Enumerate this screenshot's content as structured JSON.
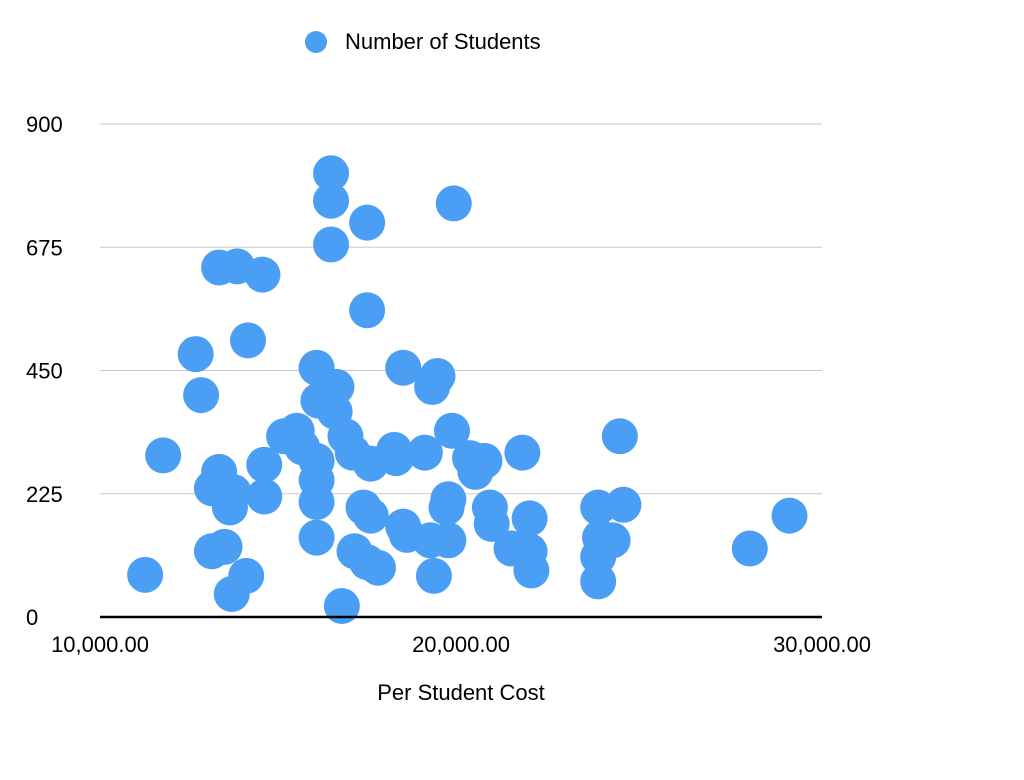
{
  "chart_data": {
    "type": "scatter",
    "title": "",
    "xlabel": "Per Student Cost",
    "ylabel": "",
    "xlim": [
      10000,
      30000
    ],
    "ylim": [
      0,
      900
    ],
    "grid": true,
    "legend_position": "top",
    "series_color": "#4a9ff5",
    "x_ticks": [
      {
        "value": 10000,
        "label": "10,000.00"
      },
      {
        "value": 20000,
        "label": "20,000.00"
      },
      {
        "value": 30000,
        "label": "30,000.00"
      }
    ],
    "y_ticks": [
      {
        "value": 0,
        "label": "0"
      },
      {
        "value": 225,
        "label": "225"
      },
      {
        "value": 450,
        "label": "450"
      },
      {
        "value": 675,
        "label": "675"
      },
      {
        "value": 900,
        "label": "900"
      }
    ],
    "series": [
      {
        "name": "Number of Students",
        "points": [
          [
            11250,
            77
          ],
          [
            11750,
            295
          ],
          [
            12650,
            480
          ],
          [
            12800,
            405
          ],
          [
            13100,
            235
          ],
          [
            13300,
            265
          ],
          [
            13100,
            120
          ],
          [
            13450,
            128
          ],
          [
            13650,
            42
          ],
          [
            13700,
            228
          ],
          [
            13600,
            200
          ],
          [
            13800,
            640
          ],
          [
            13300,
            638
          ],
          [
            14100,
            505
          ],
          [
            14050,
            75
          ],
          [
            14500,
            625
          ],
          [
            14550,
            278
          ],
          [
            14550,
            220
          ],
          [
            15100,
            330
          ],
          [
            15450,
            340
          ],
          [
            15600,
            310
          ],
          [
            16000,
            455
          ],
          [
            16050,
            395
          ],
          [
            16000,
            285
          ],
          [
            16000,
            250
          ],
          [
            16000,
            210
          ],
          [
            16000,
            145
          ],
          [
            16400,
            810
          ],
          [
            16400,
            760
          ],
          [
            16400,
            680
          ],
          [
            16550,
            420
          ],
          [
            16500,
            375
          ],
          [
            16800,
            330
          ],
          [
            17000,
            300
          ],
          [
            16700,
            20
          ],
          [
            17050,
            120
          ],
          [
            17300,
            200
          ],
          [
            17400,
            100
          ],
          [
            17400,
            560
          ],
          [
            17400,
            720
          ],
          [
            17700,
            90
          ],
          [
            17500,
            280
          ],
          [
            17500,
            185
          ],
          [
            18200,
            290
          ],
          [
            18150,
            305
          ],
          [
            18400,
            455
          ],
          [
            18400,
            165
          ],
          [
            18500,
            150
          ],
          [
            19000,
            300
          ],
          [
            19150,
            140
          ],
          [
            19200,
            420
          ],
          [
            19350,
            440
          ],
          [
            19250,
            75
          ],
          [
            19650,
            140
          ],
          [
            19600,
            200
          ],
          [
            19650,
            215
          ],
          [
            19750,
            340
          ],
          [
            19800,
            755
          ],
          [
            20250,
            290
          ],
          [
            20400,
            265
          ],
          [
            20650,
            285
          ],
          [
            20800,
            200
          ],
          [
            20850,
            170
          ],
          [
            21400,
            125
          ],
          [
            21700,
            300
          ],
          [
            21900,
            180
          ],
          [
            21900,
            120
          ],
          [
            21950,
            85
          ],
          [
            23800,
            200
          ],
          [
            23850,
            145
          ],
          [
            23800,
            110
          ],
          [
            23800,
            65
          ],
          [
            24200,
            140
          ],
          [
            24500,
            205
          ],
          [
            24400,
            330
          ],
          [
            28000,
            125
          ],
          [
            29100,
            185
          ]
        ]
      }
    ]
  }
}
